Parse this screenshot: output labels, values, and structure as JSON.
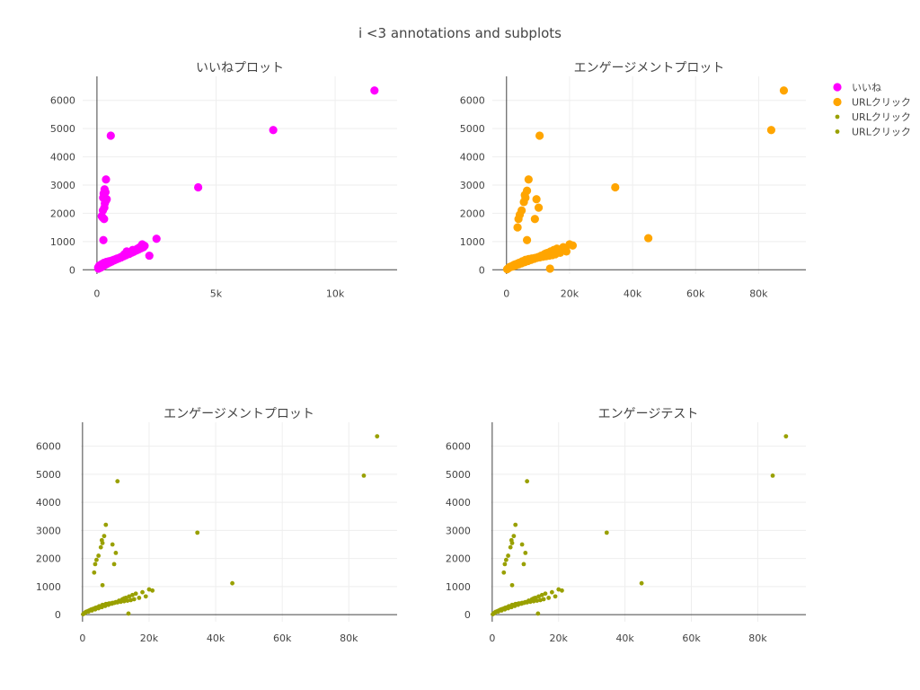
{
  "title": "i <3 annotations and subplots",
  "legend": {
    "placement": "top-right",
    "items": [
      {
        "label": "いいね",
        "color": "#ff00ff",
        "marker": "large"
      },
      {
        "label": "URLクリック",
        "color": "#ffa500",
        "marker": "large"
      },
      {
        "label": "URLクリック",
        "color": "#99a000",
        "marker": "small"
      },
      {
        "label": "URLクリック",
        "color": "#99a000",
        "marker": "small"
      }
    ]
  },
  "chart_data": [
    {
      "type": "scatter",
      "title": "いいねプロット",
      "grid": true,
      "xlim": [
        -600,
        12600
      ],
      "ylim": [
        -150,
        6850
      ],
      "xticks": [
        0,
        5000,
        10000
      ],
      "xtick_labels": [
        "0",
        "5k",
        "10k"
      ],
      "yticks": [
        0,
        1000,
        2000,
        3000,
        4000,
        5000,
        6000
      ],
      "ytick_labels": [
        "0",
        "1000",
        "2000",
        "3000",
        "4000",
        "5000",
        "6000"
      ],
      "series": [
        {
          "name": "いいね",
          "color": "#ff00ff",
          "marker_size": "large",
          "x": [
            11650,
            7400,
            580,
            4250,
            380,
            320,
            360,
            280,
            410,
            260,
            380,
            330,
            310,
            250,
            200,
            240,
            300,
            270,
            2500,
            1900,
            1800,
            1500,
            1250,
            1150,
            1000,
            900,
            800,
            700,
            600,
            500,
            400,
            300,
            200,
            100,
            50,
            150,
            250,
            350,
            450,
            550,
            650,
            750,
            850,
            950,
            1100,
            1200,
            1300,
            1400,
            1600,
            1700,
            2000,
            2200,
            60,
            120,
            180,
            240,
            330,
            420,
            520,
            620,
            720,
            820,
            920,
            1020,
            1120,
            1220,
            1350,
            1450,
            1550,
            1650,
            1750,
            1850,
            1950
          ],
          "y": [
            6350,
            4950,
            4750,
            2920,
            3200,
            2850,
            2750,
            2700,
            2500,
            2550,
            2450,
            2350,
            2200,
            2100,
            1900,
            1850,
            1800,
            1050,
            1100,
            900,
            800,
            700,
            650,
            550,
            450,
            400,
            380,
            350,
            320,
            300,
            280,
            250,
            200,
            150,
            80,
            120,
            180,
            220,
            260,
            300,
            330,
            360,
            400,
            420,
            500,
            550,
            600,
            620,
            700,
            750,
            850,
            500,
            40,
            60,
            90,
            120,
            170,
            210,
            250,
            290,
            330,
            370,
            410,
            440,
            480,
            520,
            560,
            600,
            640,
            680,
            720,
            760,
            800
          ]
        }
      ]
    },
    {
      "type": "scatter",
      "title": "エンゲージメントプロット",
      "grid": true,
      "xlim": [
        -4500,
        95000
      ],
      "ylim": [
        -150,
        6850
      ],
      "xticks": [
        0,
        20000,
        40000,
        60000,
        80000
      ],
      "xtick_labels": [
        "0",
        "20k",
        "40k",
        "60k",
        "80k"
      ],
      "yticks": [
        0,
        1000,
        2000,
        3000,
        4000,
        5000,
        6000
      ],
      "ytick_labels": [
        "0",
        "1000",
        "2000",
        "3000",
        "4000",
        "5000",
        "6000"
      ],
      "series": [
        {
          "name": "URLクリック",
          "color": "#ffa500",
          "marker_size": "large",
          "x": [
            88000,
            84000,
            10500,
            34500,
            45000,
            7000,
            6500,
            5800,
            6000,
            5500,
            9500,
            10200,
            4800,
            4200,
            3800,
            3500,
            9000,
            6500,
            20000,
            18000,
            16000,
            15000,
            14000,
            13000,
            12500,
            12000,
            11000,
            10000,
            9000,
            8000,
            7000,
            6000,
            5000,
            4000,
            3000,
            2000,
            1000,
            500,
            1500,
            2500,
            3500,
            4500,
            5500,
            6500,
            7500,
            8500,
            9500,
            10500,
            11500,
            12500,
            13500,
            14500,
            15500,
            17000,
            19000,
            21000,
            200,
            800,
            1800,
            2800,
            3800,
            4800,
            5800,
            6800,
            7800,
            8800,
            9800,
            10800,
            11800,
            12800,
            13800
          ],
          "y": [
            6350,
            4950,
            4750,
            2920,
            1120,
            3200,
            2800,
            2650,
            2550,
            2400,
            2500,
            2200,
            2100,
            1950,
            1800,
            1500,
            1800,
            1050,
            900,
            800,
            750,
            700,
            650,
            600,
            580,
            550,
            500,
            450,
            420,
            400,
            380,
            350,
            300,
            250,
            200,
            150,
            100,
            50,
            120,
            180,
            220,
            260,
            300,
            340,
            380,
            400,
            420,
            440,
            460,
            480,
            500,
            520,
            550,
            600,
            650,
            860,
            20,
            70,
            110,
            150,
            190,
            230,
            270,
            310,
            350,
            390,
            430,
            470,
            510,
            550,
            40
          ]
        }
      ]
    },
    {
      "type": "scatter",
      "title": "エンゲージメントプロット",
      "grid": true,
      "xlim": [
        -500,
        94500
      ],
      "ylim": [
        -250,
        6850
      ],
      "xticks": [
        0,
        20000,
        40000,
        60000,
        80000
      ],
      "xtick_labels": [
        "0",
        "20k",
        "40k",
        "60k",
        "80k"
      ],
      "yticks": [
        0,
        1000,
        2000,
        3000,
        4000,
        5000,
        6000
      ],
      "ytick_labels": [
        "0",
        "1000",
        "2000",
        "3000",
        "4000",
        "5000",
        "6000"
      ],
      "series": [
        {
          "name": "URLクリック",
          "color": "#99a000",
          "marker_size": "small",
          "x": [
            88500,
            84500,
            10500,
            34500,
            45000,
            7000,
            6500,
            5800,
            6000,
            5500,
            9000,
            10000,
            4800,
            4200,
            3800,
            3500,
            9500,
            6000,
            20000,
            18000,
            16000,
            15000,
            14000,
            13000,
            12500,
            12000,
            11000,
            10000,
            9000,
            8000,
            7000,
            6000,
            5000,
            4000,
            3000,
            2000,
            1000,
            500,
            1500,
            2500,
            3500,
            4500,
            5500,
            6500,
            7500,
            8500,
            9500,
            10500,
            11500,
            12500,
            13500,
            14500,
            15500,
            17000,
            19000,
            21000,
            200,
            800,
            1800,
            2800,
            3800,
            4800,
            5800,
            6800,
            7800,
            8800,
            9800,
            10800,
            11800,
            12800,
            13800
          ],
          "y": [
            6350,
            4950,
            4750,
            2920,
            1120,
            3200,
            2800,
            2650,
            2550,
            2400,
            2500,
            2200,
            2100,
            1950,
            1800,
            1500,
            1800,
            1050,
            900,
            800,
            750,
            700,
            650,
            600,
            580,
            550,
            500,
            450,
            420,
            400,
            380,
            350,
            300,
            250,
            200,
            150,
            100,
            50,
            120,
            180,
            220,
            260,
            300,
            340,
            380,
            400,
            420,
            440,
            460,
            480,
            500,
            520,
            550,
            600,
            650,
            860,
            20,
            70,
            110,
            150,
            190,
            230,
            270,
            310,
            350,
            390,
            430,
            470,
            510,
            550,
            40
          ]
        }
      ]
    },
    {
      "type": "scatter",
      "title": "エンゲージテスト",
      "grid": true,
      "xlim": [
        -500,
        94500
      ],
      "ylim": [
        -250,
        6850
      ],
      "xticks": [
        0,
        20000,
        40000,
        60000,
        80000
      ],
      "xtick_labels": [
        "0",
        "20k",
        "40k",
        "60k",
        "80k"
      ],
      "yticks": [
        0,
        1000,
        2000,
        3000,
        4000,
        5000,
        6000
      ],
      "ytick_labels": [
        "0",
        "1000",
        "2000",
        "3000",
        "4000",
        "5000",
        "6000"
      ],
      "series": [
        {
          "name": "URLクリック",
          "color": "#99a000",
          "marker_size": "small",
          "x": [
            88500,
            84500,
            10500,
            34500,
            45000,
            7000,
            6500,
            5800,
            6000,
            5500,
            9000,
            10000,
            4800,
            4200,
            3800,
            3500,
            9500,
            6000,
            20000,
            18000,
            16000,
            15000,
            14000,
            13000,
            12500,
            12000,
            11000,
            10000,
            9000,
            8000,
            7000,
            6000,
            5000,
            4000,
            3000,
            2000,
            1000,
            500,
            1500,
            2500,
            3500,
            4500,
            5500,
            6500,
            7500,
            8500,
            9500,
            10500,
            11500,
            12500,
            13500,
            14500,
            15500,
            17000,
            19000,
            21000,
            200,
            800,
            1800,
            2800,
            3800,
            4800,
            5800,
            6800,
            7800,
            8800,
            9800,
            10800,
            11800,
            12800,
            13800
          ],
          "y": [
            6350,
            4950,
            4750,
            2920,
            1120,
            3200,
            2800,
            2650,
            2550,
            2400,
            2500,
            2200,
            2100,
            1950,
            1800,
            1500,
            1800,
            1050,
            900,
            800,
            750,
            700,
            650,
            600,
            580,
            550,
            500,
            450,
            420,
            400,
            380,
            350,
            300,
            250,
            200,
            150,
            100,
            50,
            120,
            180,
            220,
            260,
            300,
            340,
            380,
            400,
            420,
            440,
            460,
            480,
            500,
            520,
            550,
            600,
            650,
            860,
            20,
            70,
            110,
            150,
            190,
            230,
            270,
            310,
            350,
            390,
            430,
            470,
            510,
            550,
            40
          ]
        }
      ]
    }
  ]
}
